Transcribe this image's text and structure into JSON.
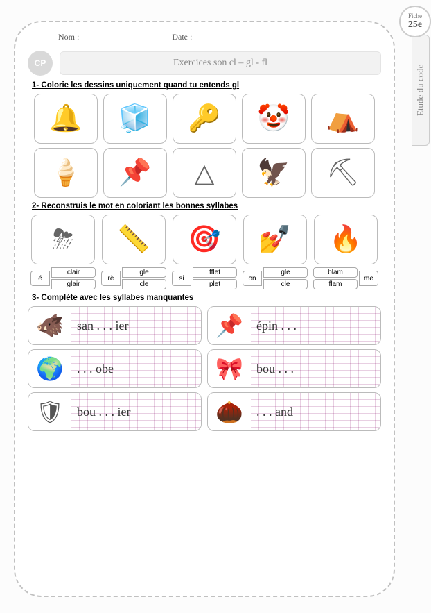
{
  "fiche": {
    "label": "Fiche",
    "num": "25e"
  },
  "sidetab": "Etude du code",
  "header": {
    "nom_label": "Nom :",
    "date_label": "Date :"
  },
  "cp": "CP",
  "title": "Exercices  son  cl – gl - fl",
  "ex1": {
    "instr": "1-  Colorie les dessins uniquement quand  tu entends  ",
    "target": "gl",
    "items_r1": [
      "🔔",
      "🧊",
      "🔑",
      "🤡",
      "⛺"
    ],
    "items_r2": [
      "🍦",
      "📌",
      "△",
      "🦅",
      "⛏"
    ]
  },
  "ex2": {
    "instr": "2-  Reconstruis le mot en coloriant les bonnes syllabes",
    "cols": [
      {
        "icon": "⛈",
        "left": "é",
        "opts": [
          "clair",
          "glair"
        ]
      },
      {
        "icon": "📏",
        "left": "rè",
        "opts": [
          "gle",
          "cle"
        ]
      },
      {
        "icon": "🎯",
        "left": "si",
        "opts": [
          "fflet",
          "plet"
        ]
      },
      {
        "icon": "💅",
        "left": "on",
        "opts": [
          "gle",
          "cle"
        ]
      },
      {
        "icon": "🔥",
        "left": "",
        "opts": [
          "blam",
          "flam"
        ],
        "right": "me"
      }
    ]
  },
  "ex3": {
    "instr": "3-  Complète avec les syllabes manquantes",
    "rows": [
      [
        {
          "icon": "🐗",
          "text": "san . . . ier"
        },
        {
          "icon": "📌",
          "text": "épin . . ."
        }
      ],
      [
        {
          "icon": "🌍",
          "text": ". . . obe"
        },
        {
          "icon": "🎀",
          "text": "bou . . ."
        }
      ],
      [
        {
          "icon": "🛡",
          "text": "bou . . . ier"
        },
        {
          "icon": "🌰",
          "text": ". . . and"
        }
      ]
    ]
  },
  "colors": {
    "border": "#bbbbbb",
    "dash": "#c0c0c0",
    "grid": "#e8cfe2",
    "pill": "#d9d9d9"
  }
}
